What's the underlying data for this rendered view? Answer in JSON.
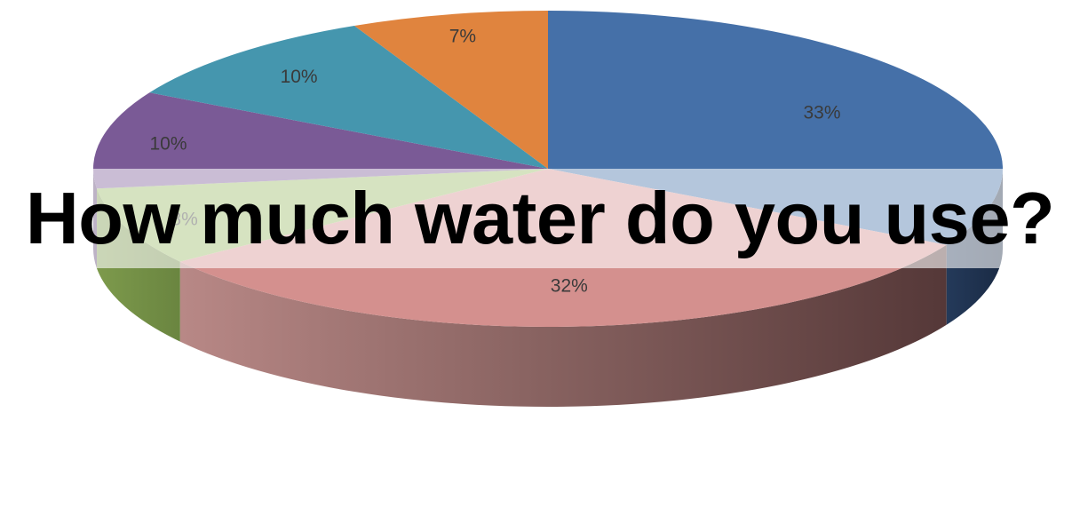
{
  "chart_data": {
    "type": "pie",
    "title": "How much water do you use?",
    "slices": [
      {
        "label": "33%",
        "value": 33,
        "color": "#4570a8"
      },
      {
        "label": "32%",
        "value": 32,
        "color": "#d4908e"
      },
      {
        "label": "8%",
        "value": 8,
        "color": "#9ab864"
      },
      {
        "label": "10%",
        "value": 10,
        "color": "#7a5a96"
      },
      {
        "label": "10%",
        "value": 10,
        "color": "#4596ae"
      },
      {
        "label": "7%",
        "value": 7,
        "color": "#e0843e"
      }
    ],
    "legend": false,
    "style": "3d-exploded-none"
  }
}
